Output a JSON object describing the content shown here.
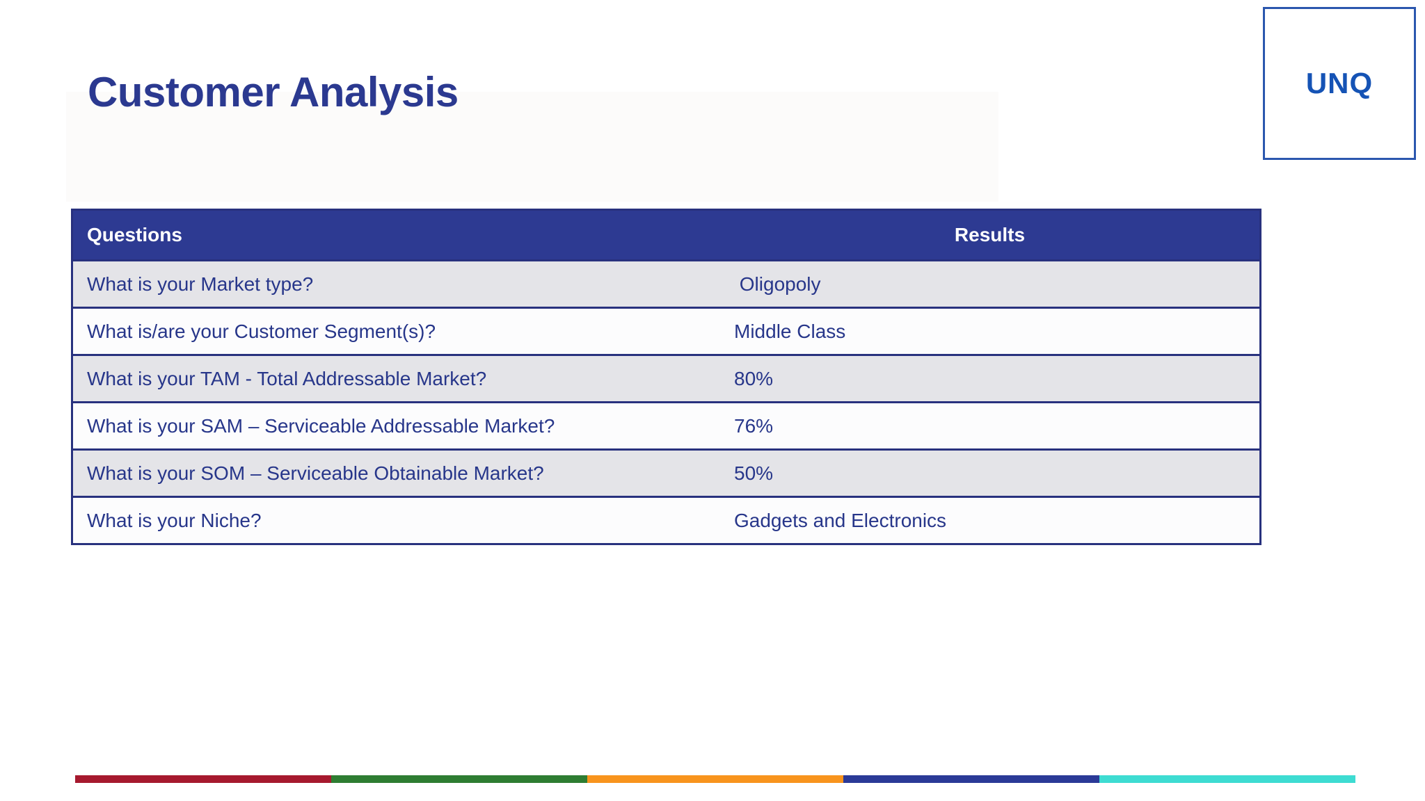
{
  "slide": {
    "title": "Customer Analysis",
    "logo": {
      "text": "UNQ"
    }
  },
  "table": {
    "headers": [
      "Questions",
      "Results"
    ],
    "rows": [
      {
        "question": "What is your Market type?",
        "result": " Oligopoly"
      },
      {
        "question": "What is/are your Customer Segment(s)?",
        "result": "Middle Class"
      },
      {
        "question": "What is your TAM - Total Addressable Market?",
        "result": "80%"
      },
      {
        "question": "What is your SAM – Serviceable Addressable Market?",
        "result": "76%"
      },
      {
        "question": "What is your SOM – Serviceable Obtainable Market?",
        "result": "50%"
      },
      {
        "question": "What is your Niche?",
        "result": "Gadgets and Electronics"
      }
    ]
  },
  "colors": {
    "title_text": "#2B3990",
    "table_header_bg": "#2D3A92",
    "table_header_text": "#FFFFFF",
    "table_border": "#28317E",
    "table_text": "#27368A",
    "row_bg": "#FCFCFD",
    "row_alt_bg": "#E4E4E8",
    "logo_text": "#1553B5",
    "logo_border": "#2B57AE",
    "title_band_bg": "#FCFBFA"
  },
  "footer_stripe": {
    "colors": [
      "#A6192E",
      "#2E7D32",
      "#F8941D",
      "#2B3A97",
      "#3EDCD2"
    ]
  }
}
